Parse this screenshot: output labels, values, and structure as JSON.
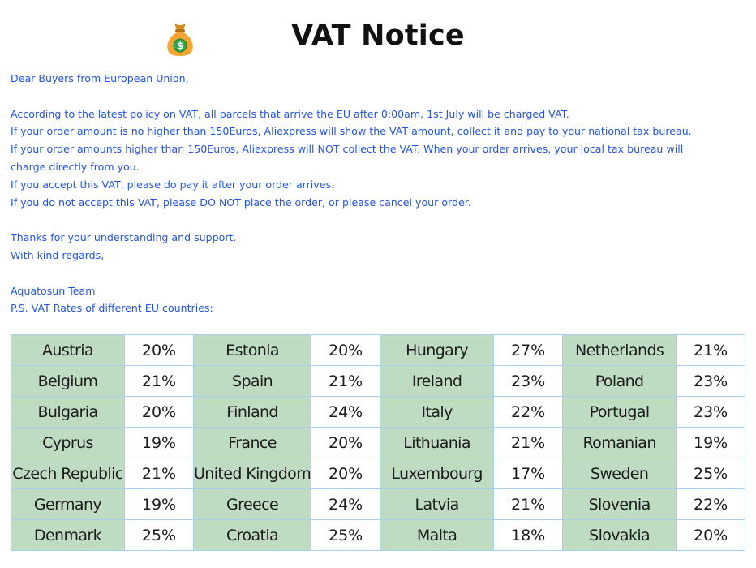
{
  "header": {
    "title": "VAT Notice",
    "icon": "money-bag-icon"
  },
  "letter": {
    "lines": [
      "Dear Buyers from European Union,",
      "",
      "According to the latest policy on VAT, all parcels that arrive the EU after 0:00am, 1st July will be charged VAT.",
      "If your order amount is no higher than 150Euros, Aliexpress will show the VAT amount, collect it and pay to your national tax bureau.",
      "If your order amounts higher than 150Euros, Aliexpress will NOT collect the VAT. When your order arrives, your local tax bureau will",
      "charge directly from you.",
      "If you accept this VAT, please do pay it after your order arrives.",
      "If you do not accept this VAT, please DO NOT place the order, or please cancel your order.",
      "",
      "Thanks for your understanding and support.",
      "With kind regards,",
      "",
      "Aquatosun Team",
      "P.S. VAT Rates of different EU countries:"
    ]
  },
  "vat_table": {
    "rows": [
      [
        [
          "Austria",
          "20%"
        ],
        [
          "Estonia",
          "20%"
        ],
        [
          "Hungary",
          "27%"
        ],
        [
          "Netherlands",
          "21%"
        ]
      ],
      [
        [
          "Belgium",
          "21%"
        ],
        [
          "Spain",
          "21%"
        ],
        [
          "Ireland",
          "23%"
        ],
        [
          "Poland",
          "23%"
        ]
      ],
      [
        [
          "Bulgaria",
          "20%"
        ],
        [
          "Finland",
          "24%"
        ],
        [
          "Italy",
          "22%"
        ],
        [
          "Portugal",
          "23%"
        ]
      ],
      [
        [
          "Cyprus",
          "19%"
        ],
        [
          "France",
          "20%"
        ],
        [
          "Lithuania",
          "21%"
        ],
        [
          "Romanian",
          "19%"
        ]
      ],
      [
        [
          "Czech Republic",
          "21%"
        ],
        [
          "United Kingdom",
          "20%"
        ],
        [
          "Luxembourg",
          "17%"
        ],
        [
          "Sweden",
          "25%"
        ]
      ],
      [
        [
          "Germany",
          "19%"
        ],
        [
          "Greece",
          "24%"
        ],
        [
          "Latvia",
          "21%"
        ],
        [
          "Slovenia",
          "22%"
        ]
      ],
      [
        [
          "Denmark",
          "25%"
        ],
        [
          "Croatia",
          "25%"
        ],
        [
          "Malta",
          "18%"
        ],
        [
          "Slovakia",
          "20%"
        ]
      ]
    ]
  },
  "colors": {
    "text_blue": "#2255e0",
    "country_cell_bg": "#bfdcc3",
    "table_border": "#a9d0ea",
    "bag_fill": "#f2a531",
    "coin_fill": "#2ea84a"
  }
}
